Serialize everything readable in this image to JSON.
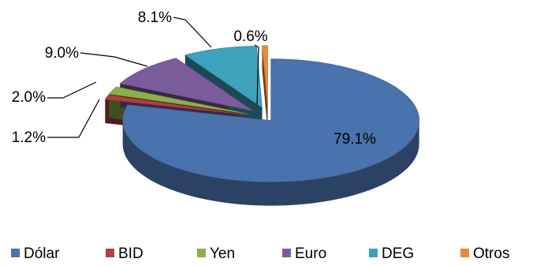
{
  "chart_data": {
    "type": "pie",
    "title": "",
    "style": "3d-exploded",
    "legend_position": "bottom",
    "series": [
      {
        "categories": [
          "Dólar",
          "BID",
          "Yen",
          "Euro",
          "DEG",
          "Otros"
        ],
        "values": [
          79.1,
          1.2,
          2.0,
          9.0,
          8.1,
          0.6
        ],
        "labels": [
          "79.1%",
          "1.2%",
          "2.0%",
          "9.0%",
          "8.1%",
          "0.6%"
        ],
        "colors": [
          "#4A72AC",
          "#B3403E",
          "#8DB04A",
          "#7A5C9C",
          "#3FA2BC",
          "#E9893A"
        ]
      }
    ]
  }
}
